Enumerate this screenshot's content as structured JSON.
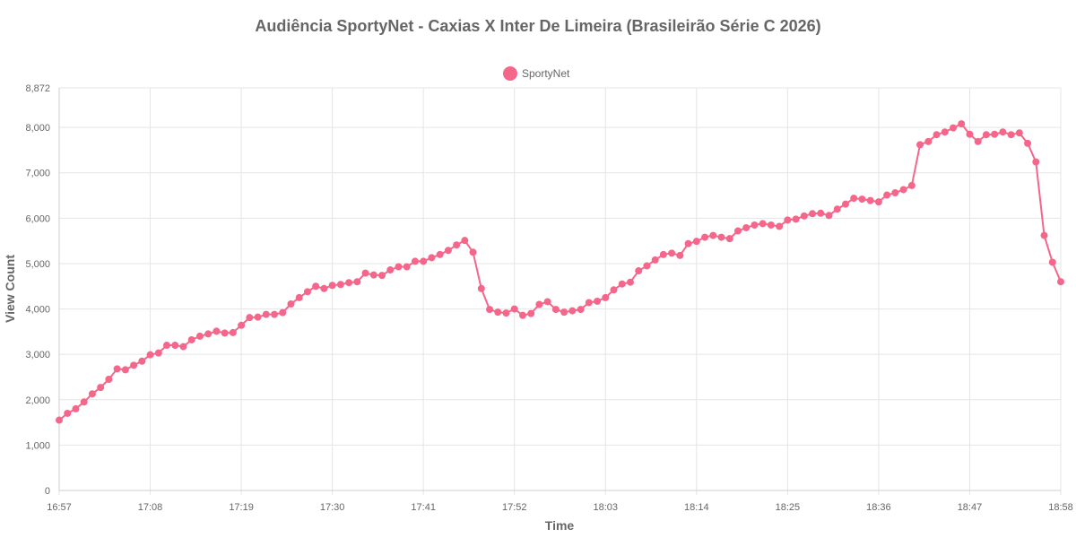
{
  "chart_data": {
    "type": "line",
    "title": "Audiência SportyNet - Caxias X Inter De Limeira (Brasileirão Série C 2026)",
    "xlabel": "Time",
    "ylabel": "View Count",
    "ylim": [
      0,
      8872
    ],
    "y_ticks": [
      0,
      1000,
      2000,
      3000,
      4000,
      5000,
      6000,
      7000,
      8000,
      8872
    ],
    "y_tick_labels": [
      "0",
      "1,000",
      "2,000",
      "3,000",
      "4,000",
      "5,000",
      "6,000",
      "7,000",
      "8,000",
      "8,872"
    ],
    "x_ticks": [
      "16:57",
      "17:08",
      "17:19",
      "17:30",
      "17:41",
      "17:52",
      "18:03",
      "18:14",
      "18:25",
      "18:36",
      "18:47",
      "18:58"
    ],
    "grid": true,
    "legend_position": "top-center",
    "color": "#f5668b",
    "series": [
      {
        "name": "SportyNet",
        "values": [
          1550,
          1700,
          1800,
          1950,
          2130,
          2270,
          2450,
          2680,
          2660,
          2760,
          2850,
          2990,
          3030,
          3200,
          3200,
          3170,
          3320,
          3400,
          3450,
          3510,
          3470,
          3480,
          3640,
          3810,
          3820,
          3880,
          3880,
          3920,
          4110,
          4250,
          4380,
          4500,
          4450,
          4520,
          4540,
          4580,
          4600,
          4790,
          4750,
          4740,
          4860,
          4930,
          4930,
          5050,
          5050,
          5130,
          5200,
          5290,
          5410,
          5510,
          5250,
          4450,
          3990,
          3930,
          3910,
          4000,
          3860,
          3900,
          4100,
          4160,
          3990,
          3930,
          3960,
          3990,
          4140,
          4170,
          4250,
          4420,
          4550,
          4590,
          4840,
          4950,
          5080,
          5200,
          5230,
          5180,
          5440,
          5490,
          5580,
          5620,
          5580,
          5550,
          5720,
          5790,
          5850,
          5880,
          5850,
          5820,
          5960,
          5980,
          6050,
          6100,
          6110,
          6060,
          6200,
          6310,
          6440,
          6420,
          6390,
          6360,
          6510,
          6560,
          6630,
          6720,
          7620,
          7690,
          7840,
          7900,
          7990,
          8080,
          7850,
          7690,
          7840,
          7850,
          7900,
          7840,
          7880,
          7650,
          7240,
          5620,
          5030,
          4600
        ]
      }
    ]
  }
}
